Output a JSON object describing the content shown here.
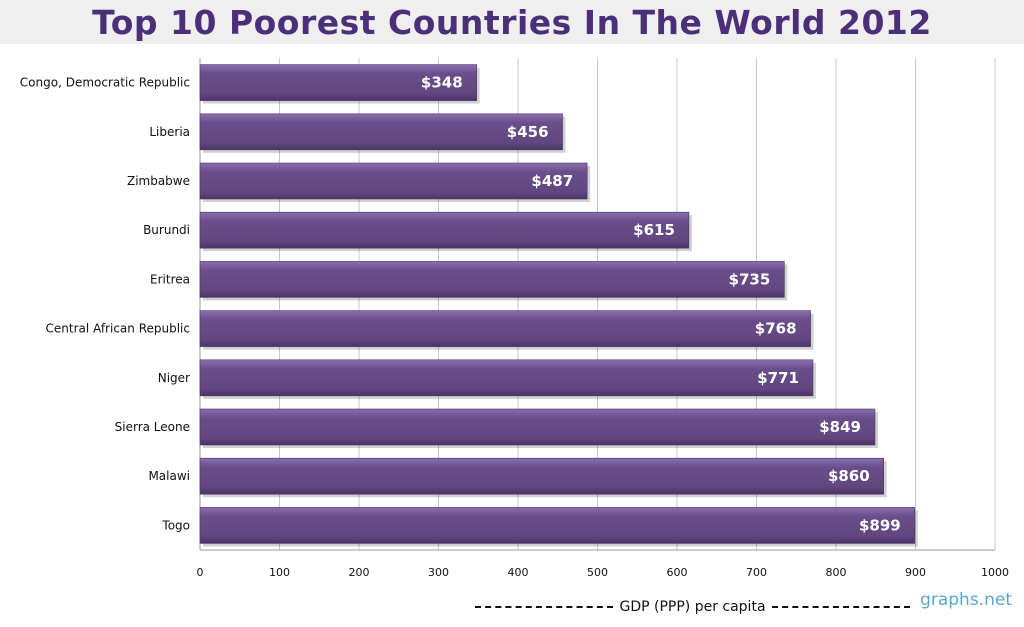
{
  "page": {
    "title": "Top 10 Poorest Countries In The World 2012",
    "watermark": "graphs.net"
  },
  "colors": {
    "bar": "#6a4e8c",
    "bar_dark": "#4a3468",
    "grid": "#c8c8c8",
    "title": "#4b2f78",
    "watermark": "#5aa8c8"
  },
  "chart_data": {
    "type": "bar",
    "orientation": "horizontal",
    "title": "Top 10 Poorest Countries In The World 2012",
    "xlabel": "GDP (PPP) per capita",
    "ylabel": "",
    "xlim": [
      0,
      1000
    ],
    "grid": true,
    "xticks": [
      "0",
      "100",
      "200",
      "300",
      "400",
      "500",
      "600",
      "700",
      "800",
      "900",
      "1000"
    ],
    "categories": [
      "Congo, Democratic Republic",
      "Liberia",
      "Zimbabwe",
      "Burundi",
      "Eritrea",
      "Central African Republic",
      "Niger",
      "Sierra Leone",
      "Malawi",
      "Togo"
    ],
    "values": [
      348,
      456,
      487,
      615,
      735,
      768,
      771,
      849,
      860,
      899
    ],
    "data_labels": [
      "$348",
      "$456",
      "$487",
      "$615",
      "$735",
      "$768",
      "$771",
      "$849",
      "$860",
      "$899"
    ]
  }
}
